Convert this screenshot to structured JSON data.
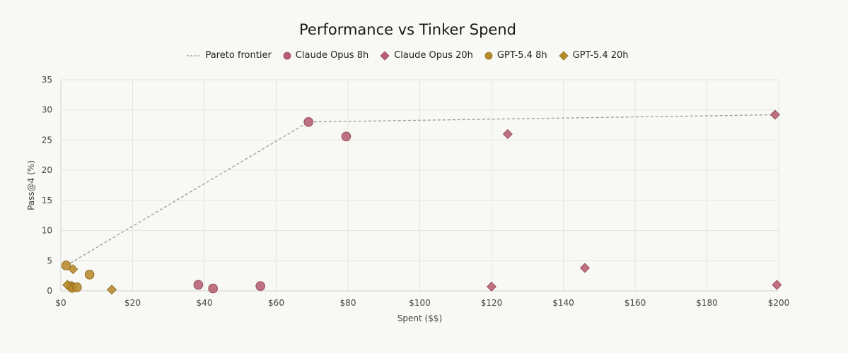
{
  "chart_data": {
    "type": "scatter",
    "title": "Performance vs Tinker Spend",
    "xlabel": "Spent ($$)",
    "ylabel": "Pass@4 (%)",
    "xlim": [
      0,
      200
    ],
    "ylim": [
      0,
      35
    ],
    "x_ticks": [
      0,
      20,
      40,
      60,
      80,
      100,
      120,
      140,
      160,
      180,
      200
    ],
    "x_tick_labels": [
      "$0",
      "$20",
      "$40",
      "$60",
      "$80",
      "$100",
      "$120",
      "$140",
      "$160",
      "$180",
      "$200"
    ],
    "y_ticks": [
      0,
      5,
      10,
      15,
      20,
      25,
      30,
      35
    ],
    "y_tick_labels": [
      "0",
      "5",
      "10",
      "15",
      "20",
      "25",
      "30",
      "35"
    ],
    "grid": true,
    "legend_position": "top-center",
    "pareto": {
      "name": "Pareto frontier",
      "color": "#999999",
      "points": [
        [
          1.5,
          4.2
        ],
        [
          69,
          28
        ],
        [
          199,
          29.2
        ]
      ]
    },
    "series": [
      {
        "name": "Claude Opus 8h",
        "marker": "circle",
        "color": "#b85f72",
        "points": [
          [
            69,
            28
          ],
          [
            79.5,
            25.6
          ],
          [
            38.3,
            1.0
          ],
          [
            42.4,
            0.4
          ],
          [
            55.6,
            0.8
          ]
        ]
      },
      {
        "name": "Claude Opus 20h",
        "marker": "diamond",
        "color": "#b85f72",
        "points": [
          [
            199,
            29.2
          ],
          [
            124.5,
            26
          ],
          [
            120,
            0.7
          ],
          [
            146,
            3.8
          ],
          [
            199.5,
            1.0
          ]
        ]
      },
      {
        "name": "GPT-5.4 8h",
        "marker": "circle",
        "color": "#b78a2a",
        "points": [
          [
            1.5,
            4.2
          ],
          [
            2.8,
            0.8
          ],
          [
            3.2,
            0.5
          ],
          [
            4.5,
            0.6
          ],
          [
            8,
            2.7
          ]
        ]
      },
      {
        "name": "GPT-5.4 20h",
        "marker": "diamond",
        "color": "#b78a2a",
        "points": [
          [
            1.8,
            1.0
          ],
          [
            3.4,
            3.6
          ],
          [
            14.2,
            0.2
          ]
        ]
      }
    ]
  }
}
